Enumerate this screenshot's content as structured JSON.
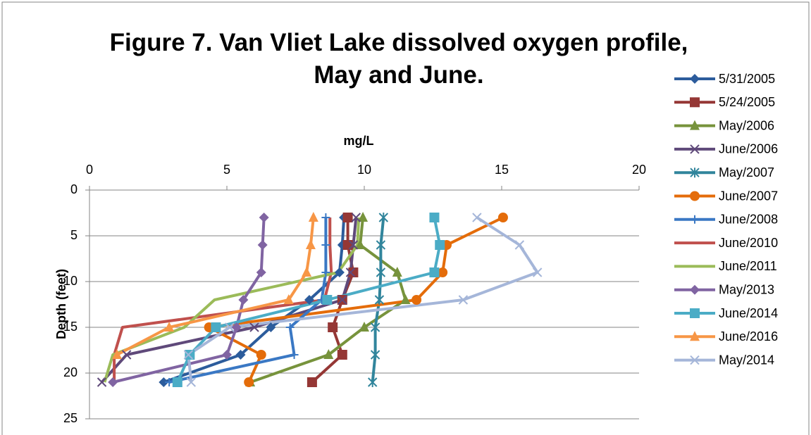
{
  "chart_data": {
    "type": "scatter",
    "title": "Figure 7. Van Vliet Lake dissolved oxygen profile, May and June.",
    "x_label": "mg/L",
    "y_label": "Depth (feet)",
    "xlim": [
      0,
      20
    ],
    "xticks": [
      0,
      5,
      10,
      15,
      20
    ],
    "ylim": [
      0,
      25
    ],
    "yticks": [
      0,
      5,
      10,
      15,
      20,
      25
    ],
    "y_reversed": true,
    "x_axis_position": "top",
    "grid": "y",
    "legend": "right",
    "series": [
      {
        "name": "5/31/2005",
        "color": "#2c5c9c",
        "marker": "diamond",
        "x": [
          9.26,
          9.2,
          9.1,
          8.0,
          6.6,
          5.5,
          2.7
        ],
        "y": [
          3,
          6,
          9,
          12,
          15,
          18,
          21
        ]
      },
      {
        "name": "5/24/2005",
        "color": "#953735",
        "marker": "square",
        "x": [
          9.4,
          9.4,
          9.6,
          9.2,
          8.85,
          9.2,
          8.1
        ],
        "y": [
          3,
          6,
          9,
          12,
          15,
          18,
          21
        ]
      },
      {
        "name": "May/2006",
        "color": "#77933c",
        "marker": "triangle",
        "x": [
          9.95,
          9.85,
          11.2,
          11.5,
          10.0,
          8.7,
          5.85
        ],
        "y": [
          3,
          6,
          9,
          12,
          15,
          18,
          21
        ]
      },
      {
        "name": "June/2006",
        "color": "#5f497a",
        "marker": "x",
        "x": [
          9.7,
          9.6,
          9.5,
          9.2,
          6.0,
          1.35,
          0.45
        ],
        "y": [
          3,
          6,
          9,
          12,
          15,
          18,
          21
        ]
      },
      {
        "name": "May/2007",
        "color": "#31859c",
        "marker": "star",
        "x": [
          10.7,
          10.6,
          10.6,
          10.55,
          10.4,
          10.4,
          10.3
        ],
        "y": [
          3,
          6,
          9,
          12,
          15,
          18,
          21
        ]
      },
      {
        "name": "June/2007",
        "color": "#e46c0a",
        "marker": "circle",
        "x": [
          15.05,
          13.0,
          12.85,
          11.9,
          4.35,
          6.25,
          5.8
        ],
        "y": [
          3,
          6,
          9,
          12,
          15,
          18,
          21
        ]
      },
      {
        "name": "June/2008",
        "color": "#3a78c4",
        "marker": "plus",
        "x": [
          8.6,
          8.6,
          8.6,
          8.45,
          7.3,
          7.45,
          2.9
        ],
        "y": [
          3,
          6,
          9,
          12,
          15,
          18,
          21
        ]
      },
      {
        "name": "June/2010",
        "color": "#c0504d",
        "marker": "none",
        "x": [
          8.75,
          8.75,
          8.8,
          8.55,
          1.2,
          0.9,
          0.9
        ],
        "y": [
          3,
          6,
          9,
          12,
          15,
          18,
          21
        ]
      },
      {
        "name": "June/2011",
        "color": "#9bbb59",
        "marker": "none",
        "x": [
          9.8,
          9.75,
          9.05,
          4.55,
          3.45,
          0.85,
          0.55
        ],
        "y": [
          3,
          6,
          9,
          12,
          15,
          18,
          21
        ]
      },
      {
        "name": "May/2013",
        "color": "#8064a2",
        "marker": "diamond",
        "x": [
          6.35,
          6.3,
          6.25,
          5.6,
          5.35,
          5.0,
          0.85
        ],
        "y": [
          3,
          6,
          9,
          12,
          15,
          18,
          21
        ]
      },
      {
        "name": "June/2014",
        "color": "#4bacc6",
        "marker": "square",
        "x": [
          12.55,
          12.75,
          12.55,
          8.65,
          4.6,
          3.65,
          3.2
        ],
        "y": [
          3,
          6,
          9,
          12,
          15,
          18,
          21
        ]
      },
      {
        "name": "June/2016",
        "color": "#f79646",
        "marker": "triangle",
        "x": [
          8.15,
          8.05,
          7.9,
          7.25,
          2.9,
          1.0
        ],
        "y": [
          3,
          6,
          9,
          12,
          15,
          18
        ]
      },
      {
        "name": "May/2014",
        "color": "#a5b6d9",
        "marker": "x",
        "x": [
          14.1,
          15.65,
          16.3,
          13.6,
          5.1,
          3.6,
          3.7
        ],
        "y": [
          3,
          6,
          9,
          12,
          15,
          18,
          21
        ]
      }
    ]
  }
}
